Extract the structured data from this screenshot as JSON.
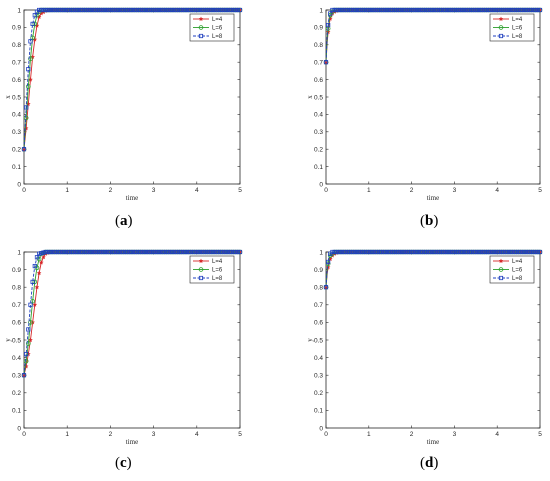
{
  "chart_data": [
    {
      "type": "line",
      "caption_open": "(",
      "caption_letter": "a",
      "caption_close": ")",
      "xlabel": "time",
      "ylabel": "x",
      "xlim": [
        0,
        5
      ],
      "ylim": [
        0,
        1
      ],
      "xticks": [
        "0",
        "1",
        "2",
        "3",
        "4",
        "5"
      ],
      "yticks": [
        "0",
        "0.1",
        "0.2",
        "0.3",
        "0.4",
        "0.5",
        "0.6",
        "0.7",
        "0.8",
        "0.9",
        "1"
      ],
      "legend_position": "top-right",
      "series": [
        {
          "name": "L=4",
          "color": "#d62728",
          "marker": "star",
          "x": [
            0,
            0.05,
            0.1,
            0.15,
            0.2,
            0.25,
            0.3,
            0.35,
            0.4,
            0.5,
            0.6,
            1,
            2,
            3,
            4,
            5
          ],
          "y": [
            0.2,
            0.32,
            0.46,
            0.6,
            0.73,
            0.83,
            0.91,
            0.96,
            0.98,
            0.995,
            1,
            1,
            1,
            1,
            1,
            1
          ]
        },
        {
          "name": "L=6",
          "color": "#2ca02c",
          "marker": "circle",
          "x": [
            0,
            0.05,
            0.1,
            0.15,
            0.2,
            0.25,
            0.3,
            0.35,
            0.4,
            0.5,
            1,
            2,
            3,
            4,
            5
          ],
          "y": [
            0.2,
            0.38,
            0.56,
            0.72,
            0.84,
            0.92,
            0.97,
            0.99,
            1,
            1,
            1,
            1,
            1,
            1,
            1
          ]
        },
        {
          "name": "L=8",
          "color": "#1f3fbf",
          "marker": "square",
          "x": [
            0,
            0.05,
            0.1,
            0.15,
            0.2,
            0.25,
            0.3,
            0.35,
            0.5,
            1,
            2,
            3,
            4,
            5
          ],
          "y": [
            0.2,
            0.44,
            0.66,
            0.82,
            0.92,
            0.97,
            0.99,
            1,
            1,
            1,
            1,
            1,
            1,
            1
          ]
        }
      ]
    },
    {
      "type": "line",
      "caption_open": "(",
      "caption_letter": "b",
      "caption_close": ")",
      "xlabel": "time",
      "ylabel": "x",
      "xlim": [
        0,
        5
      ],
      "ylim": [
        0,
        1
      ],
      "xticks": [
        "0",
        "1",
        "2",
        "3",
        "4",
        "5"
      ],
      "yticks": [
        "0",
        "0.1",
        "0.2",
        "0.3",
        "0.4",
        "0.5",
        "0.6",
        "0.7",
        "0.8",
        "0.9",
        "1"
      ],
      "legend_position": "top-right",
      "series": [
        {
          "name": "L=4",
          "color": "#d62728",
          "marker": "star",
          "x": [
            0,
            0.03,
            0.06,
            0.1,
            0.15,
            0.2,
            0.3,
            0.5,
            1,
            2,
            3,
            4,
            5
          ],
          "y": [
            0.7,
            0.82,
            0.9,
            0.95,
            0.98,
            0.99,
            1,
            1,
            1,
            1,
            1,
            1,
            1
          ]
        },
        {
          "name": "L=6",
          "color": "#2ca02c",
          "marker": "circle",
          "x": [
            0,
            0.03,
            0.06,
            0.1,
            0.15,
            0.2,
            0.3,
            0.5,
            1,
            2,
            3,
            4,
            5
          ],
          "y": [
            0.7,
            0.84,
            0.92,
            0.97,
            0.99,
            1,
            1,
            1,
            1,
            1,
            1,
            1,
            1
          ]
        },
        {
          "name": "L=8",
          "color": "#1f3fbf",
          "marker": "square",
          "x": [
            0,
            0.03,
            0.06,
            0.1,
            0.15,
            0.2,
            0.3,
            0.5,
            1,
            2,
            3,
            4,
            5
          ],
          "y": [
            0.7,
            0.86,
            0.94,
            0.98,
            1,
            1,
            1,
            1,
            1,
            1,
            1,
            1,
            1
          ]
        }
      ]
    },
    {
      "type": "line",
      "caption_open": "(",
      "caption_letter": "c",
      "caption_close": ")",
      "xlabel": "time",
      "ylabel": "y",
      "xlim": [
        0,
        5
      ],
      "ylim": [
        0,
        1
      ],
      "xticks": [
        "0",
        "1",
        "2",
        "3",
        "4",
        "5"
      ],
      "yticks": [
        "0",
        "0.1",
        "0.2",
        "0.3",
        "0.4",
        "0.5",
        "0.6",
        "0.7",
        "0.8",
        "0.9",
        "1"
      ],
      "legend_position": "top-right",
      "series": [
        {
          "name": "L=4",
          "color": "#d62728",
          "marker": "star",
          "x": [
            0,
            0.05,
            0.1,
            0.15,
            0.2,
            0.25,
            0.3,
            0.35,
            0.4,
            0.45,
            0.5,
            0.6,
            1,
            2,
            3,
            4,
            5
          ],
          "y": [
            0.3,
            0.35,
            0.42,
            0.5,
            0.6,
            0.7,
            0.8,
            0.88,
            0.94,
            0.97,
            0.99,
            1,
            1,
            1,
            1,
            1,
            1
          ]
        },
        {
          "name": "L=6",
          "color": "#2ca02c",
          "marker": "circle",
          "x": [
            0,
            0.05,
            0.1,
            0.15,
            0.2,
            0.25,
            0.3,
            0.35,
            0.4,
            0.5,
            1,
            2,
            3,
            4,
            5
          ],
          "y": [
            0.3,
            0.38,
            0.48,
            0.6,
            0.72,
            0.83,
            0.91,
            0.96,
            0.99,
            1,
            1,
            1,
            1,
            1,
            1
          ]
        },
        {
          "name": "L=8",
          "color": "#1f3fbf",
          "marker": "square",
          "x": [
            0,
            0.05,
            0.1,
            0.15,
            0.2,
            0.25,
            0.3,
            0.35,
            0.5,
            1,
            2,
            3,
            4,
            5
          ],
          "y": [
            0.3,
            0.42,
            0.56,
            0.7,
            0.83,
            0.92,
            0.97,
            0.99,
            1,
            1,
            1,
            1,
            1,
            1
          ]
        }
      ]
    },
    {
      "type": "line",
      "caption_open": "(",
      "caption_letter": "d",
      "caption_close": ")",
      "xlabel": "time",
      "ylabel": "y",
      "xlim": [
        0,
        5
      ],
      "ylim": [
        0,
        1
      ],
      "xticks": [
        "0",
        "1",
        "2",
        "3",
        "4",
        "5"
      ],
      "yticks": [
        "0",
        "0.1",
        "0.2",
        "0.3",
        "0.4",
        "0.5",
        "0.6",
        "0.7",
        "0.8",
        "0.9",
        "1"
      ],
      "legend_position": "top-right",
      "series": [
        {
          "name": "L=4",
          "color": "#d62728",
          "marker": "star",
          "x": [
            0,
            0.03,
            0.06,
            0.1,
            0.15,
            0.2,
            0.3,
            0.5,
            1,
            2,
            3,
            4,
            5
          ],
          "y": [
            0.8,
            0.88,
            0.93,
            0.96,
            0.98,
            0.99,
            1,
            1,
            1,
            1,
            1,
            1,
            1
          ]
        },
        {
          "name": "L=6",
          "color": "#2ca02c",
          "marker": "circle",
          "x": [
            0,
            0.03,
            0.06,
            0.1,
            0.15,
            0.2,
            0.3,
            0.5,
            1,
            2,
            3,
            4,
            5
          ],
          "y": [
            0.8,
            0.9,
            0.95,
            0.98,
            0.99,
            1,
            1,
            1,
            1,
            1,
            1,
            1,
            1
          ]
        },
        {
          "name": "L=8",
          "color": "#1f3fbf",
          "marker": "square",
          "x": [
            0,
            0.03,
            0.06,
            0.1,
            0.15,
            0.2,
            0.3,
            0.5,
            1,
            2,
            3,
            4,
            5
          ],
          "y": [
            0.8,
            0.91,
            0.96,
            0.99,
            1,
            1,
            1,
            1,
            1,
            1,
            1,
            1,
            1
          ]
        }
      ]
    }
  ]
}
